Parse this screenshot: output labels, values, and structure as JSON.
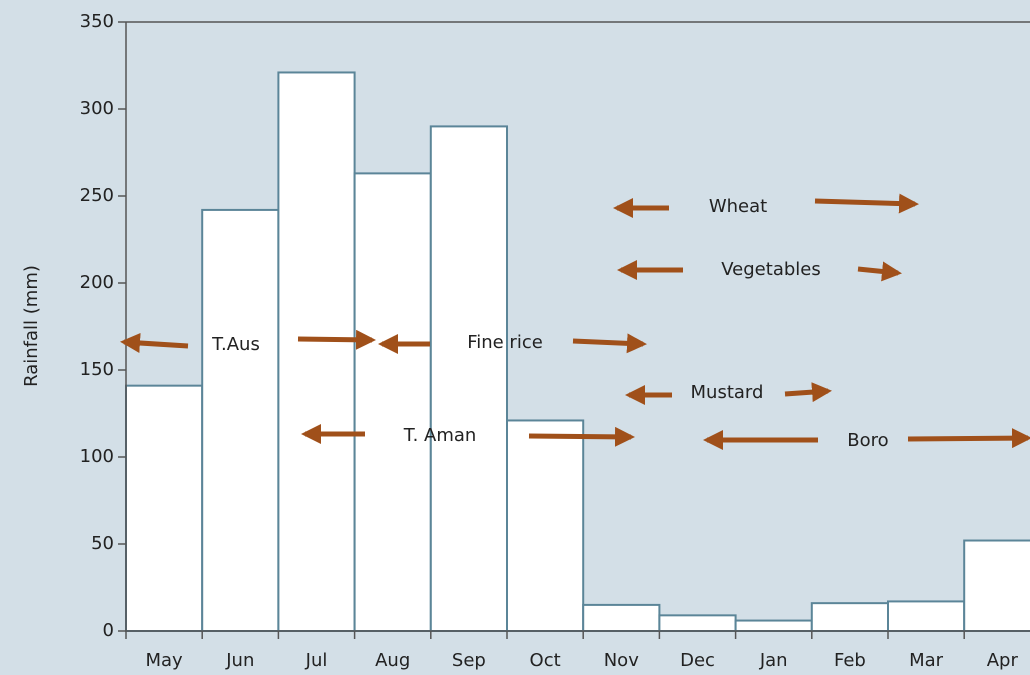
{
  "chart_data": {
    "type": "bar",
    "y_label": "Rainfall (mm)",
    "categories": [
      "May",
      "Jun",
      "Jul",
      "Aug",
      "Sep",
      "Oct",
      "Nov",
      "Dec",
      "Jan",
      "Feb",
      "Mar",
      "Apr"
    ],
    "values": [
      141,
      242,
      321,
      263,
      290,
      121,
      15,
      9,
      6,
      16,
      17,
      52
    ],
    "color": "#ffffff",
    "edge_color": "#5b8598",
    "ylim": [
      0,
      350
    ],
    "yticks": [
      0,
      50,
      100,
      150,
      200,
      250,
      300,
      350
    ],
    "grid": false,
    "annotations": [
      "T.Aus",
      "Fine rice",
      "T. Aman",
      "Wheat",
      "Vegetables",
      "Mustard",
      "Boro"
    ]
  }
}
